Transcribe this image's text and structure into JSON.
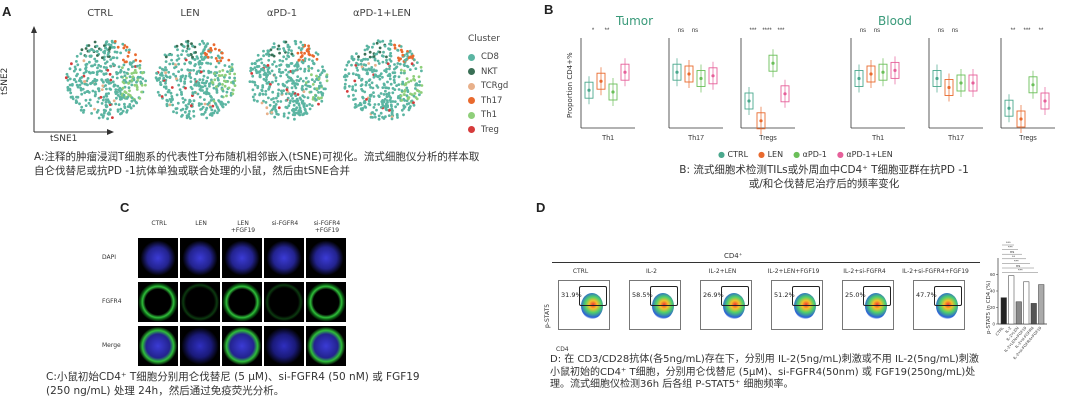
{
  "panelA": {
    "label": "A",
    "titles": [
      "CTRL",
      "LEN",
      "αPD-1",
      "αPD-1+LEN"
    ],
    "legend_title": "Cluster",
    "legend": [
      {
        "name": "CD8",
        "color": "#5bb5a2"
      },
      {
        "name": "NKT",
        "color": "#3a6f55"
      },
      {
        "name": "TCRgd",
        "color": "#e8b08a"
      },
      {
        "name": "Th17",
        "color": "#e96a2e"
      },
      {
        "name": "Th1",
        "color": "#8fcf7a"
      },
      {
        "name": "Treg",
        "color": "#d63b3b"
      }
    ],
    "y_axis": "tSNE2",
    "x_axis": "tSNE1",
    "caption": "A:注释的肿瘤浸润T细胞系的代表性T分布随机相邻嵌入(tSNE)可视化。流式细胞仪分析的样本取自仑伐替尼或抗PD -1抗体单独或联合处理的小鼠，然后由tSNE合并"
  },
  "panelB": {
    "label": "B",
    "group_tumor": "Tumor",
    "group_blood": "Blood",
    "ylabel": "Proportion CD4+%",
    "plots": [
      {
        "xlabel": "Th1",
        "sig": [
          "*",
          "**"
        ]
      },
      {
        "xlabel": "Th17",
        "sig": [
          "ns",
          "ns"
        ]
      },
      {
        "xlabel": "Tregs",
        "sig": [
          "***",
          "****",
          "***"
        ]
      },
      {
        "xlabel": "Th1",
        "sig": [
          "ns",
          "ns"
        ]
      },
      {
        "xlabel": "Th17",
        "sig": [
          "ns",
          "ns"
        ]
      },
      {
        "xlabel": "Tregs",
        "sig": [
          "**",
          "***",
          "**"
        ]
      }
    ],
    "legend": [
      {
        "name": "CTRL",
        "color": "#4aa88d"
      },
      {
        "name": "LEN",
        "color": "#e96a2e"
      },
      {
        "name": "αPD-1",
        "color": "#6bbf59"
      },
      {
        "name": "αPD-1+LEN",
        "color": "#e6609a"
      }
    ],
    "caption": "B: 流式细胞术检测TILs或外周血中CD4⁺ T细胞亚群在抗PD -1或/和仑伐替尼治疗后的频率变化"
  },
  "panelC": {
    "label": "C",
    "columns": [
      "CTRL",
      "LEN",
      "LEN\n+FGF19",
      "si-FGFR4",
      "si-FGFR4\n+FGF19"
    ],
    "rows": [
      "DAPI",
      "FGFR4",
      "Merge"
    ],
    "caption": "C:小鼠初始CD4⁺ T细胞分别用仑伐替尼 (5 μM)、si-FGFR4 (50 nM) 或 FGF19 (250 ng/mL) 处理 24h，然后通过免疫荧光分析。"
  },
  "panelD": {
    "label": "D",
    "header": "CD4⁺",
    "conditions": [
      {
        "name": "CTRL",
        "pct": "31.9%"
      },
      {
        "name": "IL-2",
        "pct": "58.5%"
      },
      {
        "name": "IL-2+LEN",
        "pct": "26.9%"
      },
      {
        "name": "IL-2+LEN+FGF19",
        "pct": "51.2%"
      },
      {
        "name": "IL-2+si-FGFR4",
        "pct": "25.0%"
      },
      {
        "name": "IL-2+si-FGFR4+FGF19",
        "pct": "47.7%"
      }
    ],
    "y_axis": "p-STAT5",
    "x_axis": "CD4",
    "bar_ylabel": "p-STAT5 in CD4 (%)",
    "bar_values": [
      31.9,
      58.5,
      26.9,
      51.2,
      25.0,
      47.7
    ],
    "bar_labels": [
      "CTRL",
      "IL-2",
      "IL-2+LEN",
      "IL-2+LEN+FGF19",
      "IL-2+si-FGFR4",
      "IL-2+si-FGFR4+FGF19"
    ],
    "bar_sig": [
      "***",
      "***",
      "ns",
      "**",
      "***",
      "ns",
      "***"
    ],
    "caption": "D: 在 CD3/CD28抗体(各5ng/mL)存在下，分别用 IL-2(5ng/mL)刺激或不用 IL-2(5ng/mL)刺激小鼠初始的CD4⁺ T细胞，分别用仑伐替尼 (5μM)、si-FGFR4(50nm) 或 FGF19(250ng/mL)处理。流式细胞仪检测36h 后各组 P-STAT5⁺ 细胞频率。"
  }
}
